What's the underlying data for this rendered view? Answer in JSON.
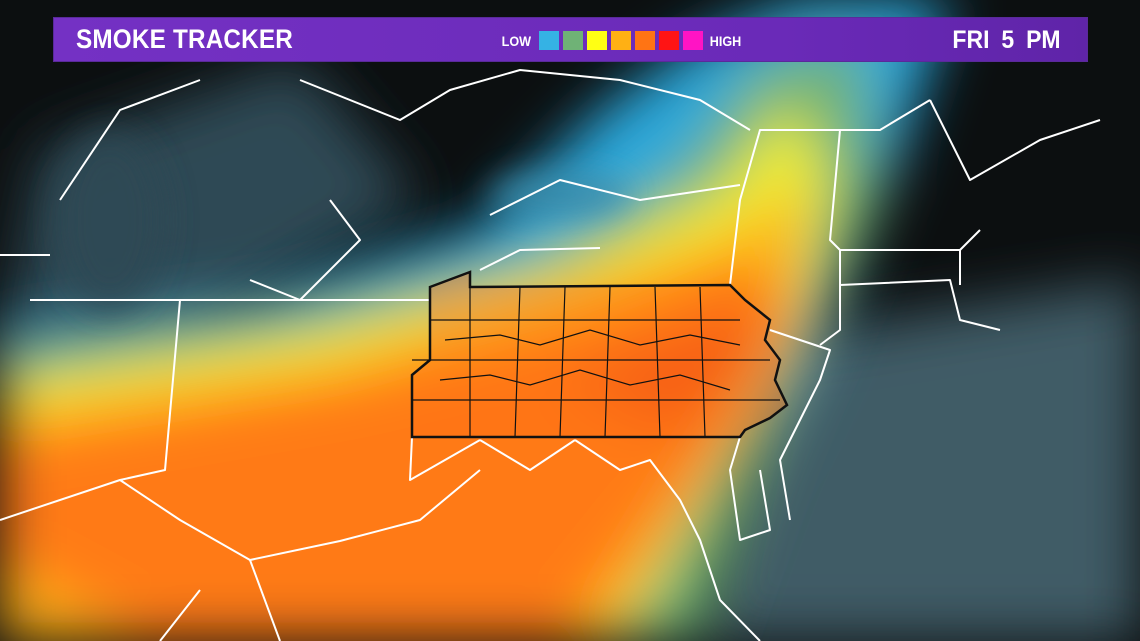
{
  "header": {
    "title": "SMOKE TRACKER",
    "time": "FRI 5 PM"
  },
  "legend": {
    "low_label": "LOW",
    "high_label": "HIGH",
    "colors": [
      "#35b2e4",
      "#6fb276",
      "#ffff14",
      "#ffb014",
      "#ff7414",
      "#ff1414",
      "#ff14c4"
    ]
  },
  "map": {
    "highlighted_region": "Pennsylvania counties",
    "background": "#0c0f10",
    "water": "#3c5a66"
  }
}
